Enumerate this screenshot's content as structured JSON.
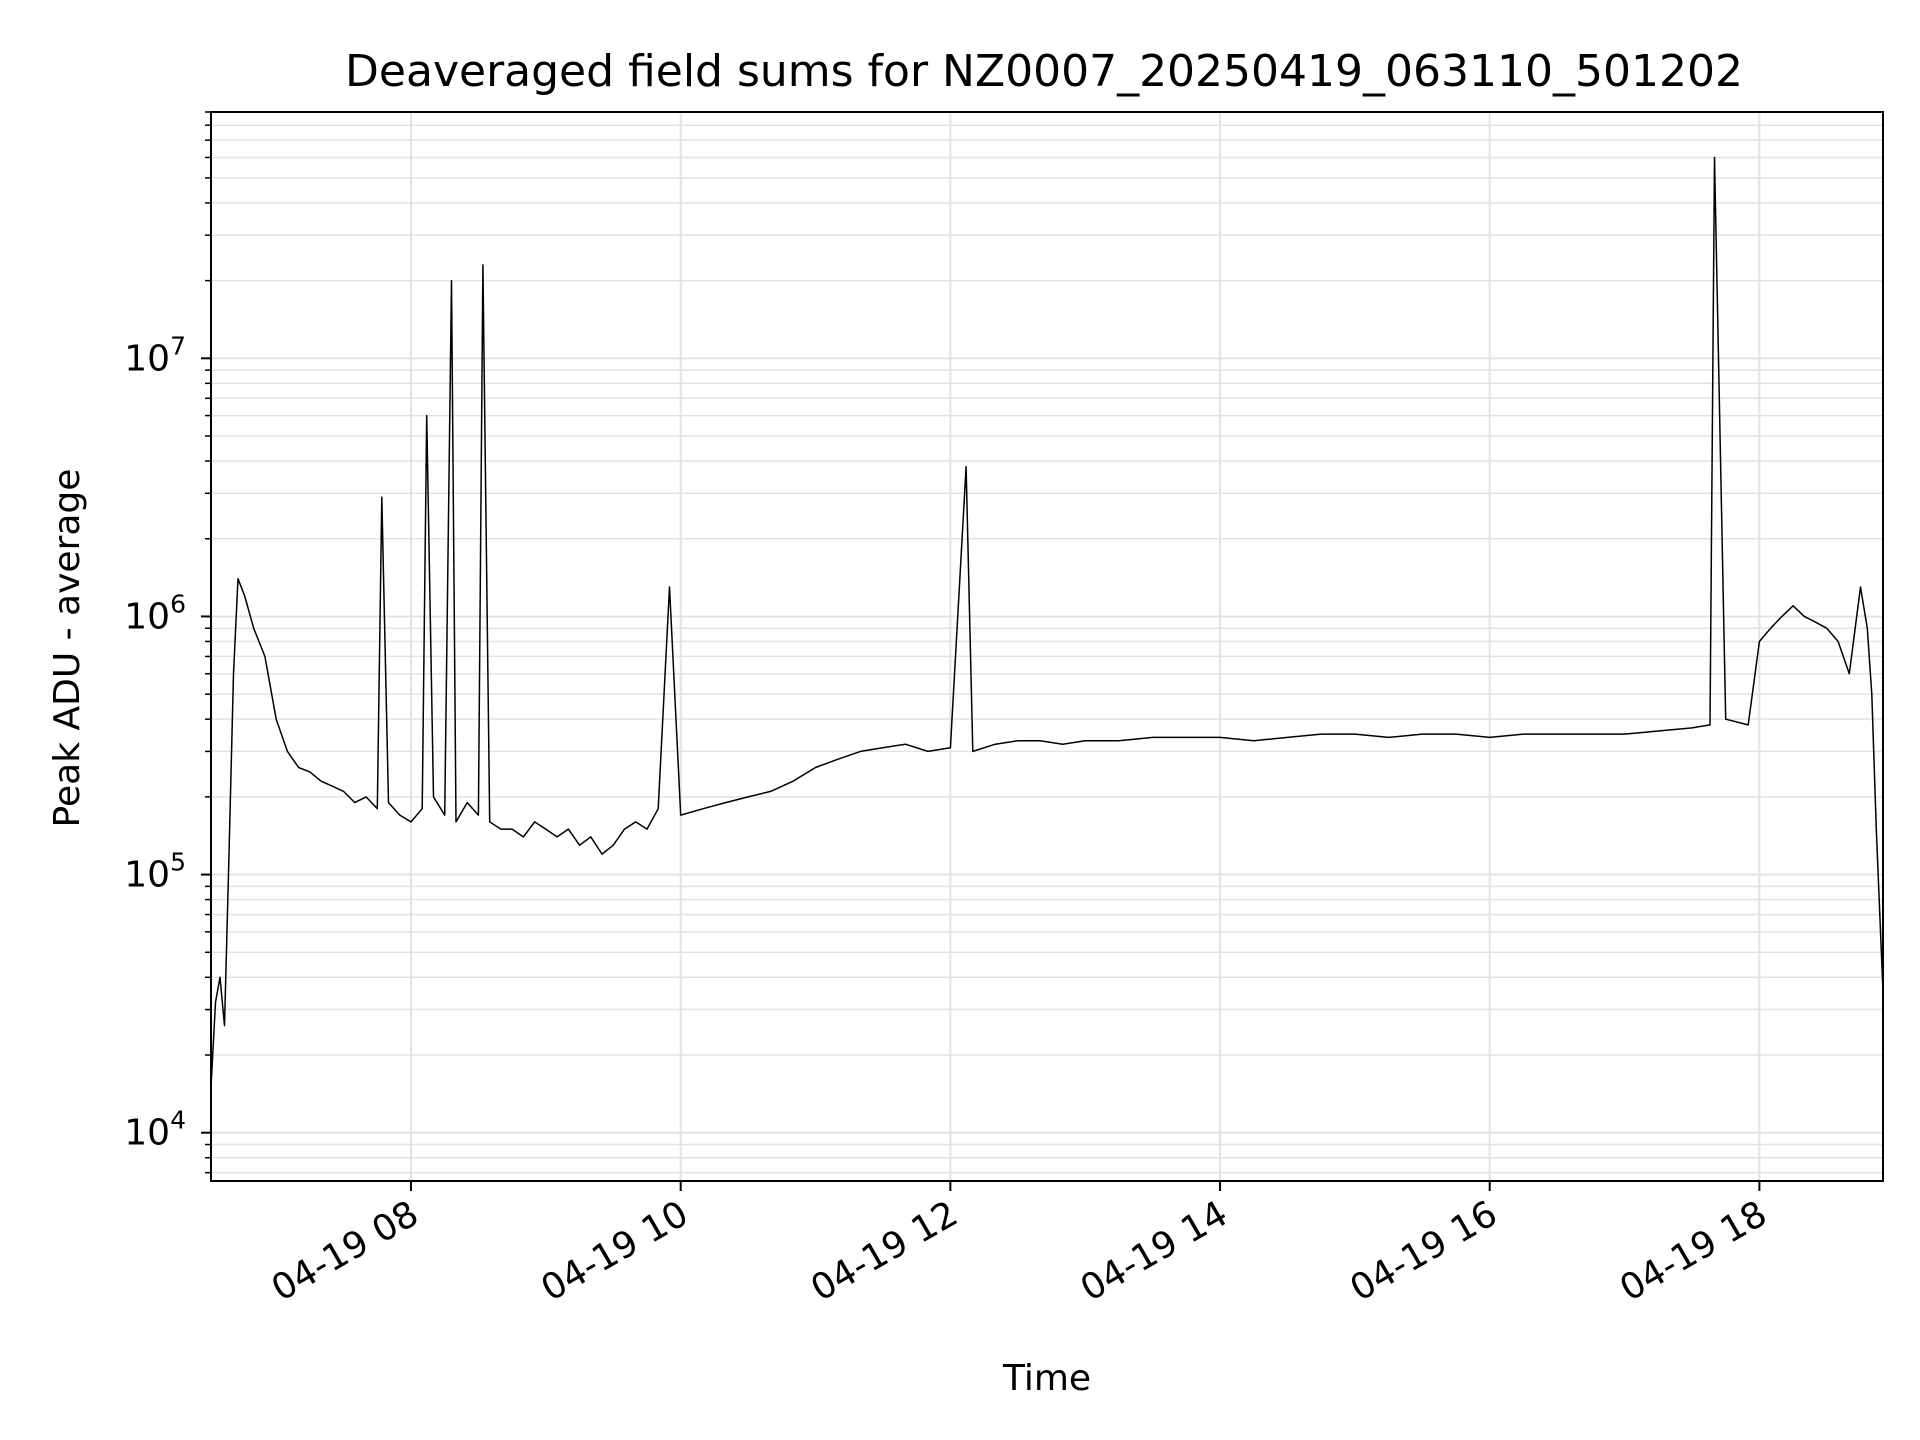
{
  "chart_data": {
    "type": "line",
    "title": "Deaveraged field sums for NZ0007_20250419_063110_501202",
    "xlabel": "Time",
    "ylabel": "Peak ADU - average",
    "y_scale": "log",
    "xlim": [
      "2025-04-19 06:31",
      "2025-04-19 18:55"
    ],
    "ylim": [
      6500,
      90000000
    ],
    "grid": true,
    "line_color": "#000000",
    "x_ticks": [
      "04-19 08",
      "04-19 10",
      "04-19 12",
      "04-19 14",
      "04-19 16",
      "04-19 18"
    ],
    "x_tick_times": [
      "2025-04-19 08:00",
      "2025-04-19 10:00",
      "2025-04-19 12:00",
      "2025-04-19 14:00",
      "2025-04-19 16:00",
      "2025-04-19 18:00"
    ],
    "y_ticks": [
      {
        "base": "10",
        "exp": "4",
        "value": 10000
      },
      {
        "base": "10",
        "exp": "5",
        "value": 100000
      },
      {
        "base": "10",
        "exp": "6",
        "value": 1000000
      },
      {
        "base": "10",
        "exp": "7",
        "value": 10000000
      }
    ],
    "series": [
      {
        "x": [
          "06:31",
          "06:33",
          "06:35",
          "06:37",
          "06:39",
          "06:41",
          "06:43",
          "06:46",
          "06:50",
          "06:55",
          "07:00",
          "07:05",
          "07:10",
          "07:15",
          "07:20",
          "07:25",
          "07:30",
          "07:35",
          "07:40",
          "07:45",
          "07:47",
          "07:50",
          "07:55",
          "08:00",
          "08:05",
          "08:07",
          "08:10",
          "08:15",
          "08:18",
          "08:20",
          "08:25",
          "08:30",
          "08:32",
          "08:35",
          "08:40",
          "08:45",
          "08:50",
          "08:55",
          "09:00",
          "09:05",
          "09:10",
          "09:15",
          "09:20",
          "09:25",
          "09:30",
          "09:35",
          "09:40",
          "09:45",
          "09:50",
          "09:55",
          "10:00",
          "10:10",
          "10:20",
          "10:30",
          "10:40",
          "10:50",
          "11:00",
          "11:10",
          "11:20",
          "11:30",
          "11:40",
          "11:50",
          "12:00",
          "12:07",
          "12:10",
          "12:20",
          "12:30",
          "12:40",
          "12:50",
          "13:00",
          "13:15",
          "13:30",
          "13:45",
          "14:00",
          "14:15",
          "14:30",
          "14:45",
          "15:00",
          "15:15",
          "15:30",
          "15:45",
          "16:00",
          "16:15",
          "16:30",
          "16:45",
          "17:00",
          "17:15",
          "17:30",
          "17:38",
          "17:40",
          "17:45",
          "17:55",
          "18:00",
          "18:05",
          "18:10",
          "18:15",
          "18:20",
          "18:25",
          "18:30",
          "18:35",
          "18:40",
          "18:45",
          "18:48",
          "18:50",
          "18:52",
          "18:55"
        ],
        "values": [
          15000,
          32000,
          40000,
          26000,
          120000,
          600000,
          1400000,
          1200000,
          900000,
          700000,
          400000,
          300000,
          260000,
          250000,
          230000,
          220000,
          210000,
          190000,
          200000,
          180000,
          2900000,
          190000,
          170000,
          160000,
          180000,
          6000000,
          200000,
          170000,
          20000000,
          160000,
          190000,
          170000,
          23000000,
          160000,
          150000,
          150000,
          140000,
          160000,
          150000,
          140000,
          150000,
          130000,
          140000,
          120000,
          130000,
          150000,
          160000,
          150000,
          180000,
          1300000,
          170000,
          180000,
          190000,
          200000,
          210000,
          230000,
          260000,
          280000,
          300000,
          310000,
          320000,
          300000,
          310000,
          3800000,
          300000,
          320000,
          330000,
          330000,
          320000,
          330000,
          330000,
          340000,
          340000,
          340000,
          330000,
          340000,
          350000,
          350000,
          340000,
          350000,
          350000,
          340000,
          350000,
          350000,
          350000,
          350000,
          360000,
          370000,
          380000,
          60000000,
          400000,
          380000,
          800000,
          900000,
          1000000,
          1100000,
          1000000,
          950000,
          900000,
          800000,
          600000,
          1300000,
          900000,
          500000,
          150000,
          35000
        ]
      }
    ]
  }
}
